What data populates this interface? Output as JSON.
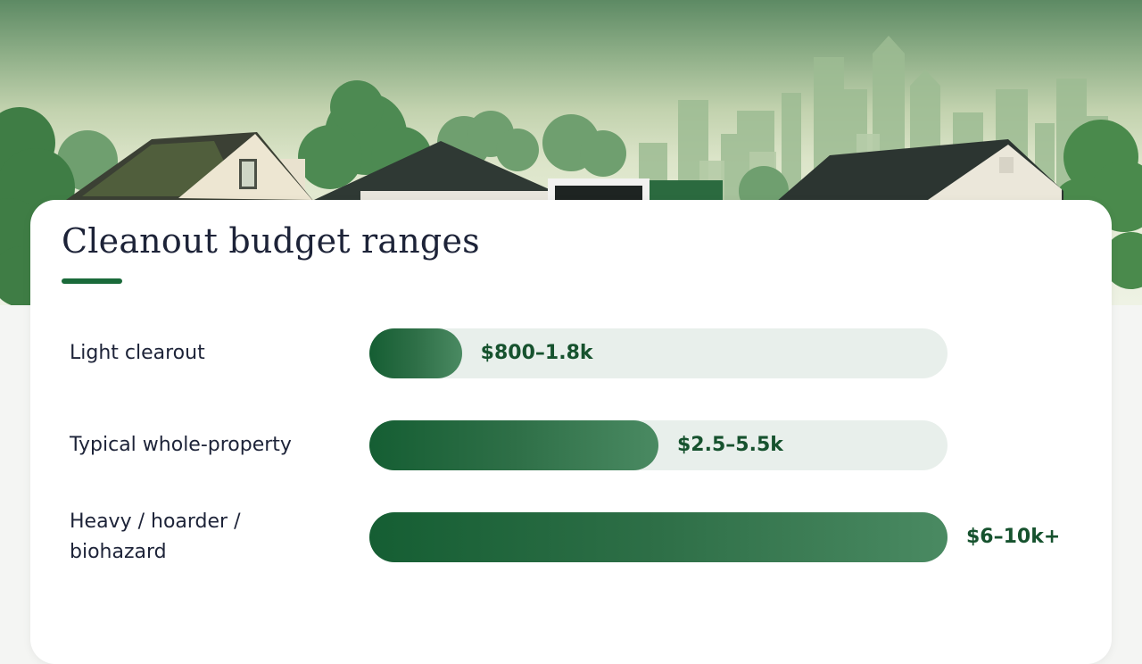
{
  "title": "Cleanout budget ranges",
  "colors": {
    "bar": "#1a6a3a",
    "track": "#e8efeb",
    "value_text": "#16522e",
    "title_text": "#1d2338",
    "accent_rule": "#1a6a3a"
  },
  "chart_data": {
    "type": "bar",
    "orientation": "horizontal",
    "title": "Cleanout budget ranges",
    "categories": [
      "Light clearout",
      "Typical whole-property",
      "Heavy / hoarder / biohazard"
    ],
    "series": [
      {
        "values": [
          16,
          50,
          100
        ]
      }
    ],
    "value_labels": [
      "$800–1.8k",
      "$2.5–5.5k",
      "$6–10k+"
    ],
    "xlim": [
      0,
      100
    ],
    "xlabel": "",
    "ylabel": "",
    "grid": false
  }
}
